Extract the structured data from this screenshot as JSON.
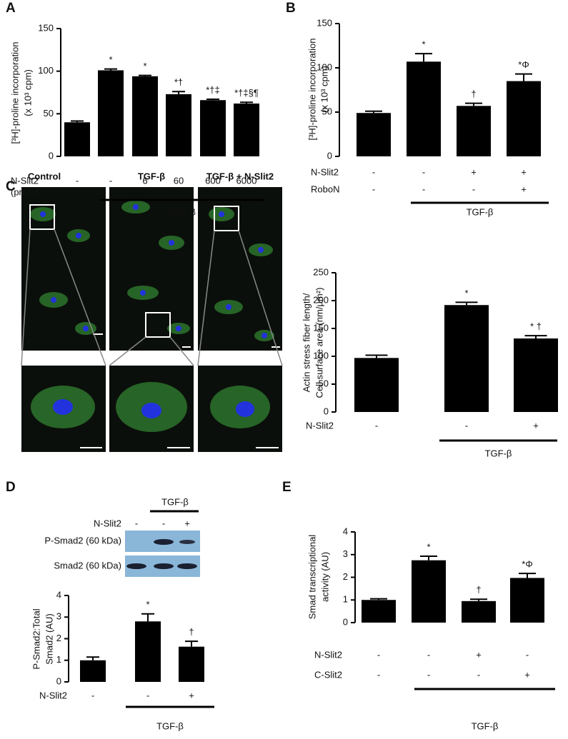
{
  "chart_data": [
    {
      "type": "bar",
      "panel": "A",
      "y_label": [
        "[³H]-proline incorporation",
        "(x 10³ cpm)"
      ],
      "ylim": [
        0,
        150
      ],
      "yticks": [
        0,
        50,
        100,
        150
      ],
      "values": [
        40,
        101,
        94,
        73,
        66,
        62
      ],
      "errors": [
        1.5,
        1.5,
        1,
        3,
        1,
        1.5
      ],
      "annotations": [
        null,
        "*",
        "*",
        "*†",
        "*†‡",
        "*†‡§¶"
      ],
      "treatments": [
        {
          "label": [
            "N-Slit2",
            "(pmol/L)"
          ],
          "values": [
            "-",
            "-",
            "6",
            "60",
            "600",
            "6000"
          ]
        }
      ],
      "group_label": "TGF-β",
      "color": "#000000"
    },
    {
      "type": "bar",
      "panel": "B",
      "y_label": [
        "[³H]-proline incorporation",
        "(x 10³ cpm)"
      ],
      "ylim": [
        0,
        150
      ],
      "yticks": [
        0,
        50,
        100,
        150
      ],
      "values": [
        49,
        107,
        57,
        85
      ],
      "errors": [
        2,
        9,
        3,
        8
      ],
      "annotations": [
        null,
        "*",
        "†",
        "*Φ"
      ],
      "treatments": [
        {
          "label": [
            "N-Slit2"
          ],
          "values": [
            "-",
            "-",
            "+",
            "+"
          ]
        },
        {
          "label": [
            "RoboN"
          ],
          "values": [
            "-",
            "-",
            "-",
            "+"
          ]
        }
      ],
      "group_label": "TGF-β",
      "color": "#000000"
    },
    {
      "type": "bar",
      "y_label": [
        "Actin stress fiber length/",
        "Cell surface area (nm/µm²)"
      ],
      "ylim": [
        0,
        250
      ],
      "yticks": [
        0,
        50,
        100,
        150,
        200,
        250
      ],
      "values": [
        97,
        192,
        132
      ],
      "errors": [
        5,
        5,
        5
      ],
      "annotations": [
        null,
        "*",
        "* †"
      ],
      "treatments": [
        {
          "label": [
            "N-Slit2"
          ],
          "values": [
            "-",
            "-",
            "+"
          ]
        }
      ],
      "group_label": "TGF-β",
      "color": "#000000"
    },
    {
      "type": "bar",
      "panel": "D",
      "y_label": [
        "P-Smad2:Total",
        "Smad2 (AU)"
      ],
      "ylim": [
        0,
        4
      ],
      "yticks": [
        0,
        1,
        2,
        3,
        4
      ],
      "values": [
        1.0,
        2.8,
        1.63
      ],
      "errors": [
        0.15,
        0.35,
        0.25
      ],
      "annotations": [
        null,
        "*",
        "†"
      ],
      "treatments": [
        {
          "label": [
            "N-Slit2"
          ],
          "values": [
            "-",
            "-",
            "+"
          ]
        }
      ],
      "group_label": "TGF-β",
      "color": "#000000"
    },
    {
      "type": "bar",
      "panel": "E",
      "y_label": [
        "Smad transcriptional",
        "activity (AU)"
      ],
      "ylim": [
        0,
        4
      ],
      "yticks": [
        0,
        1,
        2,
        3,
        4
      ],
      "values": [
        1.0,
        2.75,
        0.95,
        1.97
      ],
      "errors": [
        0.05,
        0.18,
        0.08,
        0.2
      ],
      "annotations": [
        null,
        "*",
        "†",
        "*Φ"
      ],
      "treatments": [
        {
          "label": [
            "N-Slit2"
          ],
          "values": [
            "-",
            "-",
            "+",
            "-"
          ]
        },
        {
          "label": [
            "C-Slit2"
          ],
          "values": [
            "-",
            "-",
            "-",
            "+"
          ]
        }
      ],
      "group_label": "TGF-β",
      "color": "#000000"
    }
  ],
  "image_panel": {
    "panel": "C",
    "titles": [
      "Control",
      "TGF-β",
      "TGF-β + N-Slit2"
    ]
  },
  "western_blot": {
    "group_label": "TGF-β",
    "row_label": "N-Slit2",
    "treatment": [
      "-",
      "-",
      "+"
    ],
    "bands": [
      "P-Smad2 (60 kDa)",
      "Smad2 (60 kDa)"
    ]
  }
}
